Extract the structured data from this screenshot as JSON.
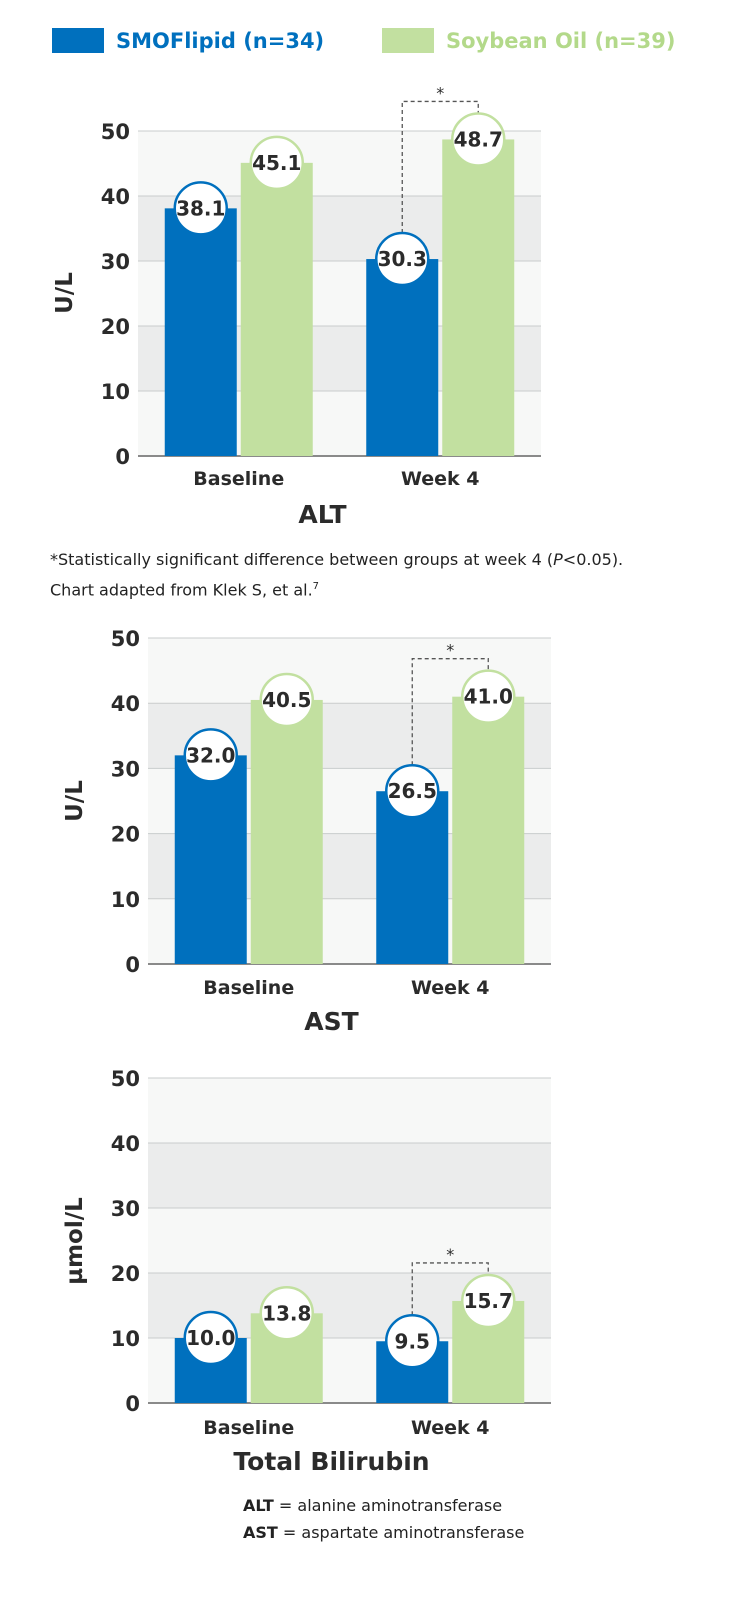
{
  "legend": {
    "items": [
      {
        "label": "SMOFlipid (n=34)",
        "color": "#0070be"
      },
      {
        "label": "Soybean Oil (n=39)",
        "color": "#c2e0a0"
      }
    ]
  },
  "footnote": {
    "star": "*",
    "line1_pre": "Statistically significant difference between groups at week 4 (",
    "line1_p": "P",
    "line1_post": "<0.05).",
    "line2": "Chart adapted from Klek S, et al.",
    "line2_sup": "7"
  },
  "abbreviations": [
    {
      "abbr": "ALT",
      "text": " = alanine aminotransferase"
    },
    {
      "abbr": "AST",
      "text": " = aspartate aminotransferase"
    }
  ],
  "chart_data": [
    {
      "type": "bar",
      "title": "ALT",
      "ylabel": "U/L",
      "xlabel": "",
      "ylim": [
        0,
        50
      ],
      "yticks": [
        "0",
        "10",
        "20",
        "30",
        "40",
        "50"
      ],
      "categories": [
        "Baseline",
        "Week 4"
      ],
      "series": [
        {
          "name": "SMOFlipid (n=34)",
          "values": [
            38.1,
            30.3
          ],
          "labels": [
            "38.1",
            "30.3"
          ],
          "color": "#0070be"
        },
        {
          "name": "Soybean Oil (n=39)",
          "values": [
            45.1,
            48.7
          ],
          "labels": [
            "45.1",
            "48.7"
          ],
          "color": "#c2e0a0"
        }
      ],
      "significance": {
        "category_index": 1,
        "marker": "*"
      },
      "grid": true
    },
    {
      "type": "bar",
      "title": "AST",
      "ylabel": "U/L",
      "xlabel": "",
      "ylim": [
        0,
        50
      ],
      "yticks": [
        "0",
        "10",
        "20",
        "30",
        "40",
        "50"
      ],
      "categories": [
        "Baseline",
        "Week 4"
      ],
      "series": [
        {
          "name": "SMOFlipid (n=34)",
          "values": [
            32.0,
            26.5
          ],
          "labels": [
            "32.0",
            "26.5"
          ],
          "color": "#0070be"
        },
        {
          "name": "Soybean Oil (n=39)",
          "values": [
            40.5,
            41.0
          ],
          "labels": [
            "40.5",
            "41.0"
          ],
          "color": "#c2e0a0"
        }
      ],
      "significance": {
        "category_index": 1,
        "marker": "*"
      },
      "grid": true
    },
    {
      "type": "bar",
      "title": "Total Bilirubin",
      "ylabel": "µmol/L",
      "xlabel": "",
      "ylim": [
        0,
        50
      ],
      "yticks": [
        "0",
        "10",
        "20",
        "30",
        "40",
        "50"
      ],
      "categories": [
        "Baseline",
        "Week 4"
      ],
      "series": [
        {
          "name": "SMOFlipid (n=34)",
          "values": [
            10.0,
            9.5
          ],
          "labels": [
            "10.0",
            "9.5"
          ],
          "color": "#0070be"
        },
        {
          "name": "Soybean Oil (n=39)",
          "values": [
            13.8,
            15.7
          ],
          "labels": [
            "13.8",
            "15.7"
          ],
          "color": "#c2e0a0"
        }
      ],
      "significance": {
        "category_index": 1,
        "marker": "*"
      },
      "grid": true
    }
  ]
}
